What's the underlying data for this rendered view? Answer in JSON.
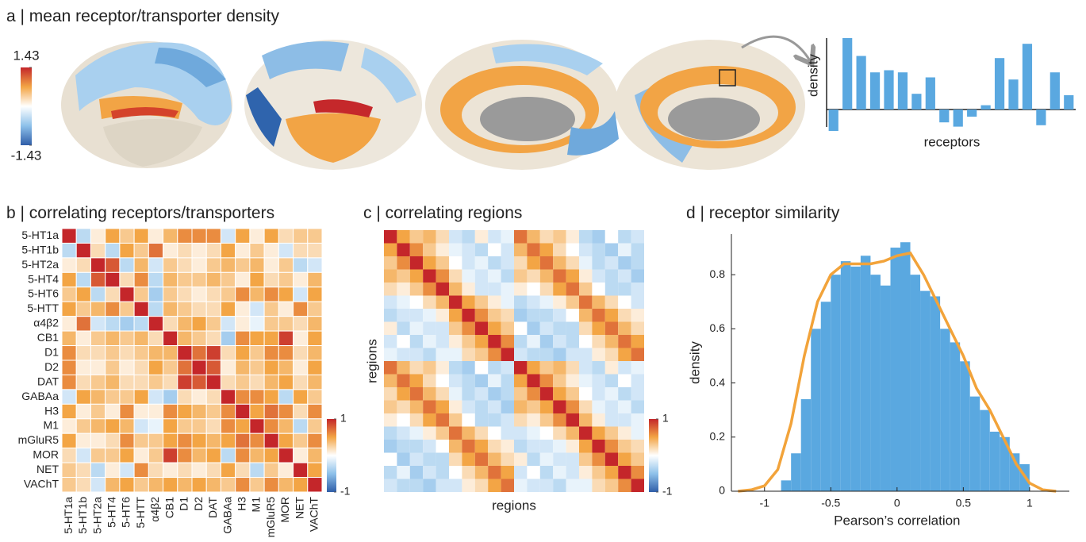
{
  "chart_data": [
    {
      "type": "brain-map",
      "title": "a | mean receptor/transporter density",
      "clim": [
        -1.43,
        1.43
      ],
      "cticks": [
        1.43,
        -1.43
      ],
      "colors": [
        "#2f5ea8",
        "#8ec1ea",
        "#ffffff",
        "#f3a545",
        "#c4262a"
      ]
    },
    {
      "type": "bar",
      "ylabel": "density",
      "xlabel": "receptors",
      "color": "#5aa8e0",
      "ylim": [
        -0.4,
        1
      ],
      "values": [
        -0.3,
        1.0,
        0.75,
        0.52,
        0.55,
        0.52,
        0.22,
        0.45,
        -0.18,
        -0.24,
        -0.1,
        0.06,
        0.72,
        0.42,
        0.92,
        -0.22,
        0.52,
        0.2
      ]
    },
    {
      "type": "heatmap",
      "title": "b | correlating receptors/transporters",
      "grid": true,
      "clim": [
        -1,
        1
      ],
      "cticks": [
        1,
        -1
      ],
      "colors": [
        "#2f5ea8",
        "#8ec1ea",
        "#ffffff",
        "#f3a545",
        "#c4262a"
      ],
      "categories": [
        "5-HT1a",
        "5-HT1b",
        "5-HT2a",
        "5-HT4",
        "5-HT6",
        "5-HTT",
        "α4β2",
        "CB1",
        "D1",
        "D2",
        "DAT",
        "GABAa",
        "H3",
        "M1",
        "mGluR5",
        "MOR",
        "NET",
        "VAChT"
      ],
      "values": [
        [
          1,
          -0.3,
          0.1,
          0.5,
          0.3,
          0.5,
          0.1,
          0.4,
          0.6,
          0.6,
          0.6,
          -0.2,
          0.5,
          0.1,
          0.5,
          0.2,
          0.3,
          0.3
        ],
        [
          -0.3,
          1,
          0.2,
          -0.3,
          0.5,
          0.3,
          0.7,
          0.1,
          0.2,
          0.1,
          0.2,
          0.5,
          0.1,
          0.3,
          0.1,
          -0.2,
          0.2,
          0.2
        ],
        [
          0.1,
          0.2,
          1,
          0.8,
          -0.3,
          0.4,
          -0.2,
          0.3,
          0.2,
          0.1,
          0.3,
          0.4,
          0.3,
          0.4,
          0.1,
          0.3,
          -0.3,
          -0.2
        ],
        [
          0.5,
          -0.3,
          0.8,
          1,
          0.2,
          0.6,
          -0.3,
          0.4,
          0.3,
          0.3,
          0.4,
          0.3,
          0.1,
          0.5,
          0.2,
          0.3,
          0.1,
          0.4
        ],
        [
          0.3,
          0.5,
          -0.3,
          0.2,
          1,
          0.3,
          -0.4,
          0.3,
          0.2,
          0.1,
          0.2,
          0.3,
          0.6,
          0.4,
          0.6,
          0.5,
          -0.2,
          0.5
        ],
        [
          0.5,
          0.3,
          0.4,
          0.6,
          0.3,
          1,
          -0.3,
          0.4,
          0.3,
          0.2,
          0.2,
          0.5,
          0.1,
          -0.2,
          0.3,
          0.1,
          0.6,
          0.3
        ],
        [
          0.1,
          0.7,
          -0.2,
          -0.3,
          -0.4,
          -0.3,
          1,
          0.2,
          0.4,
          0.5,
          0.3,
          -0.2,
          0.1,
          -0.1,
          0.3,
          0.3,
          0.2,
          0.4
        ],
        [
          0.4,
          0.1,
          0.3,
          0.4,
          0.3,
          0.4,
          0.2,
          1,
          0.4,
          0.3,
          0.2,
          -0.4,
          0.6,
          0.5,
          0.5,
          0.9,
          0.1,
          0.5
        ],
        [
          0.6,
          0.2,
          0.2,
          0.3,
          0.2,
          0.3,
          0.4,
          0.4,
          1,
          0.7,
          0.9,
          0.2,
          0.5,
          0.3,
          0.6,
          0.6,
          0.2,
          0.4
        ],
        [
          0.6,
          0.1,
          0.1,
          0.3,
          0.1,
          0.2,
          0.5,
          0.3,
          0.7,
          1,
          0.8,
          0.1,
          0.4,
          0.3,
          0.5,
          0.4,
          0.1,
          0.5
        ],
        [
          0.6,
          0.2,
          0.3,
          0.4,
          0.2,
          0.2,
          0.3,
          0.2,
          0.9,
          0.8,
          1,
          0.2,
          0.3,
          0.2,
          0.4,
          0.5,
          0.2,
          0.4
        ],
        [
          -0.2,
          0.5,
          0.4,
          0.3,
          0.3,
          0.5,
          -0.2,
          -0.4,
          0.2,
          0.1,
          0.2,
          1,
          0.6,
          0.6,
          0.5,
          -0.3,
          0.5,
          0.3
        ],
        [
          0.5,
          0.1,
          0.3,
          0.1,
          0.6,
          0.1,
          0.1,
          0.6,
          0.5,
          0.4,
          0.3,
          0.6,
          1,
          0.5,
          0.7,
          0.6,
          0.2,
          0.6
        ],
        [
          0.1,
          0.3,
          0.4,
          0.5,
          0.4,
          -0.2,
          -0.1,
          0.5,
          0.3,
          0.3,
          0.2,
          0.6,
          0.5,
          1,
          0.6,
          0.4,
          -0.3,
          0.3
        ],
        [
          0.5,
          0.1,
          0.1,
          0.2,
          0.6,
          0.3,
          0.3,
          0.5,
          0.6,
          0.5,
          0.4,
          0.5,
          0.7,
          0.6,
          1,
          0.5,
          0.3,
          0.6
        ],
        [
          0.2,
          -0.2,
          0.3,
          0.3,
          0.5,
          0.1,
          0.3,
          0.9,
          0.6,
          0.4,
          0.5,
          -0.3,
          0.6,
          0.4,
          0.5,
          1,
          0.1,
          0.4
        ],
        [
          0.3,
          0.2,
          -0.3,
          0.1,
          -0.2,
          0.6,
          0.2,
          0.1,
          0.2,
          0.1,
          0.2,
          0.5,
          0.2,
          -0.3,
          0.3,
          0.1,
          1,
          0.5
        ],
        [
          0.3,
          0.2,
          -0.2,
          0.4,
          0.5,
          0.3,
          0.4,
          0.5,
          0.4,
          0.5,
          0.4,
          0.3,
          0.6,
          0.3,
          0.6,
          0.4,
          0.5,
          1
        ]
      ]
    },
    {
      "type": "heatmap",
      "title": "c | correlating regions",
      "xlabel": "regions",
      "ylabel": "regions",
      "grid": false,
      "clim": [
        -1,
        1
      ],
      "cticks": [
        1,
        -1
      ],
      "colors": [
        "#2f5ea8",
        "#8ec1ea",
        "#ffffff",
        "#f3a545",
        "#c4262a"
      ],
      "values": [
        [
          1,
          0.5,
          0.3,
          0.4,
          0.2,
          -0.2,
          -0.3,
          0.1,
          -0.2,
          -0.1,
          0.7,
          0.4,
          0.2,
          0.3,
          0.1,
          -0.3,
          -0.4,
          0,
          -0.3,
          -0.2
        ],
        [
          0.5,
          1,
          0.6,
          0.3,
          0.1,
          -0.1,
          -0.2,
          -0.3,
          0,
          -0.2,
          0.4,
          0.7,
          0.5,
          0.2,
          0,
          -0.2,
          -0.3,
          -0.4,
          -0.1,
          -0.3
        ],
        [
          0.3,
          0.6,
          1,
          0.5,
          0.3,
          0,
          -0.2,
          -0.1,
          -0.3,
          -0.2,
          0.2,
          0.5,
          0.7,
          0.4,
          0.2,
          -0.1,
          -0.3,
          -0.2,
          -0.4,
          -0.3
        ],
        [
          0.4,
          0.3,
          0.5,
          1,
          0.6,
          0.2,
          -0.1,
          -0.2,
          -0.1,
          -0.3,
          0.3,
          0.2,
          0.4,
          0.7,
          0.5,
          0.1,
          -0.2,
          -0.3,
          -0.2,
          -0.4
        ],
        [
          0.2,
          0.1,
          0.3,
          0.6,
          1,
          0.4,
          0.1,
          -0.2,
          -0.2,
          -0.1,
          0.1,
          0,
          0.2,
          0.5,
          0.7,
          0.3,
          0,
          -0.3,
          -0.3,
          -0.2
        ],
        [
          -0.2,
          -0.1,
          0,
          0.2,
          0.4,
          1,
          0.5,
          0.3,
          0.1,
          -0.1,
          -0.3,
          -0.2,
          -0.1,
          0.1,
          0.3,
          0.7,
          0.4,
          0.2,
          0,
          -0.2
        ],
        [
          -0.3,
          -0.2,
          -0.2,
          -0.1,
          0.1,
          0.5,
          1,
          0.6,
          0.3,
          0.2,
          -0.4,
          -0.3,
          -0.3,
          -0.2,
          0,
          0.4,
          0.7,
          0.5,
          0.2,
          0.1
        ],
        [
          0.1,
          -0.3,
          -0.1,
          -0.2,
          -0.2,
          0.3,
          0.6,
          1,
          0.5,
          0.3,
          0,
          -0.4,
          -0.2,
          -0.3,
          -0.3,
          0.2,
          0.5,
          0.7,
          0.4,
          0.2
        ],
        [
          -0.2,
          0,
          -0.3,
          -0.1,
          -0.2,
          0.1,
          0.3,
          0.5,
          1,
          0.6,
          -0.3,
          -0.1,
          -0.4,
          -0.2,
          -0.3,
          0,
          0.2,
          0.4,
          0.7,
          0.5
        ],
        [
          -0.1,
          -0.2,
          -0.2,
          -0.3,
          -0.1,
          -0.1,
          0.2,
          0.3,
          0.6,
          1,
          -0.2,
          -0.3,
          -0.3,
          -0.4,
          -0.2,
          -0.2,
          0.1,
          0.2,
          0.5,
          0.7
        ],
        [
          0.7,
          0.4,
          0.2,
          0.3,
          0.1,
          -0.3,
          -0.4,
          0,
          -0.3,
          -0.2,
          1,
          0.5,
          0.3,
          0.4,
          0.2,
          -0.2,
          -0.3,
          0.1,
          -0.2,
          -0.1
        ],
        [
          0.4,
          0.7,
          0.5,
          0.2,
          0,
          -0.2,
          -0.3,
          -0.4,
          -0.1,
          -0.3,
          0.5,
          1,
          0.6,
          0.3,
          0.1,
          -0.1,
          -0.2,
          -0.3,
          0,
          -0.2
        ],
        [
          0.2,
          0.5,
          0.7,
          0.4,
          0.2,
          -0.1,
          -0.3,
          -0.2,
          -0.4,
          -0.3,
          0.3,
          0.6,
          1,
          0.5,
          0.3,
          0,
          -0.2,
          -0.1,
          -0.3,
          -0.2
        ],
        [
          0.3,
          0.2,
          0.4,
          0.7,
          0.5,
          0.1,
          -0.2,
          -0.3,
          -0.2,
          -0.4,
          0.4,
          0.3,
          0.5,
          1,
          0.6,
          0.2,
          -0.1,
          -0.2,
          -0.1,
          -0.3
        ],
        [
          0.1,
          0,
          0.2,
          0.5,
          0.7,
          0.3,
          0,
          -0.3,
          -0.3,
          -0.2,
          0.2,
          0.1,
          0.3,
          0.6,
          1,
          0.4,
          0.1,
          -0.2,
          -0.2,
          -0.1
        ],
        [
          -0.3,
          -0.2,
          -0.1,
          0.1,
          0.3,
          0.7,
          0.4,
          0.2,
          0,
          -0.2,
          -0.2,
          -0.1,
          0,
          0.2,
          0.4,
          1,
          0.5,
          0.3,
          0.1,
          -0.1
        ],
        [
          -0.4,
          -0.3,
          -0.3,
          -0.2,
          0,
          0.4,
          0.7,
          0.5,
          0.2,
          0.1,
          -0.3,
          -0.2,
          -0.2,
          -0.1,
          0.1,
          0.5,
          1,
          0.6,
          0.3,
          0.2
        ],
        [
          0,
          -0.4,
          -0.2,
          -0.3,
          -0.3,
          0.2,
          0.5,
          0.7,
          0.4,
          0.2,
          0.1,
          -0.3,
          -0.1,
          -0.2,
          -0.2,
          0.3,
          0.6,
          1,
          0.5,
          0.3
        ],
        [
          -0.3,
          -0.1,
          -0.4,
          -0.2,
          -0.3,
          0,
          0.2,
          0.4,
          0.7,
          0.5,
          -0.2,
          0,
          -0.3,
          -0.1,
          -0.2,
          0.1,
          0.3,
          0.5,
          1,
          0.6
        ],
        [
          -0.2,
          -0.3,
          -0.3,
          -0.4,
          -0.2,
          -0.2,
          0.1,
          0.2,
          0.5,
          0.7,
          -0.1,
          -0.2,
          -0.2,
          -0.3,
          -0.1,
          -0.1,
          0.2,
          0.3,
          0.6,
          1
        ]
      ]
    },
    {
      "type": "histogram",
      "title": "d | receptor similarity",
      "xlabel": "Pearson’s correlation",
      "ylabel": "density",
      "color": "#5aa8e0",
      "xlim": [
        -1.25,
        1.3
      ],
      "ylim": [
        0,
        0.95
      ],
      "xticks": [
        -1,
        -0.5,
        0,
        0.5,
        1
      ],
      "yticks": [
        0,
        0.2,
        0.4,
        0.6,
        0.8
      ],
      "bins": [
        -0.875,
        -0.8,
        -0.725,
        -0.65,
        -0.575,
        -0.5,
        -0.425,
        -0.35,
        -0.275,
        -0.2,
        -0.125,
        -0.05,
        0.025,
        0.1,
        0.175,
        0.25,
        0.325,
        0.4,
        0.475,
        0.55,
        0.625,
        0.7,
        0.775,
        0.85,
        0.925,
        1.0
      ],
      "values": [
        0.04,
        0.14,
        0.34,
        0.6,
        0.7,
        0.8,
        0.85,
        0.83,
        0.87,
        0.8,
        0.76,
        0.9,
        0.92,
        0.8,
        0.74,
        0.72,
        0.6,
        0.55,
        0.48,
        0.35,
        0.3,
        0.22,
        0.2,
        0.14,
        0.1
      ],
      "curve": {
        "color": "#f2a33a",
        "x": [
          -1.2,
          -1.1,
          -1.0,
          -0.9,
          -0.8,
          -0.7,
          -0.6,
          -0.5,
          -0.4,
          -0.3,
          -0.2,
          -0.1,
          0,
          0.1,
          0.2,
          0.3,
          0.4,
          0.5,
          0.6,
          0.7,
          0.8,
          0.9,
          1.0,
          1.1,
          1.2
        ],
        "values": [
          0,
          0.005,
          0.02,
          0.08,
          0.25,
          0.5,
          0.7,
          0.8,
          0.84,
          0.84,
          0.84,
          0.85,
          0.87,
          0.88,
          0.8,
          0.7,
          0.6,
          0.5,
          0.38,
          0.3,
          0.2,
          0.1,
          0.03,
          0.005,
          0
        ]
      }
    }
  ]
}
